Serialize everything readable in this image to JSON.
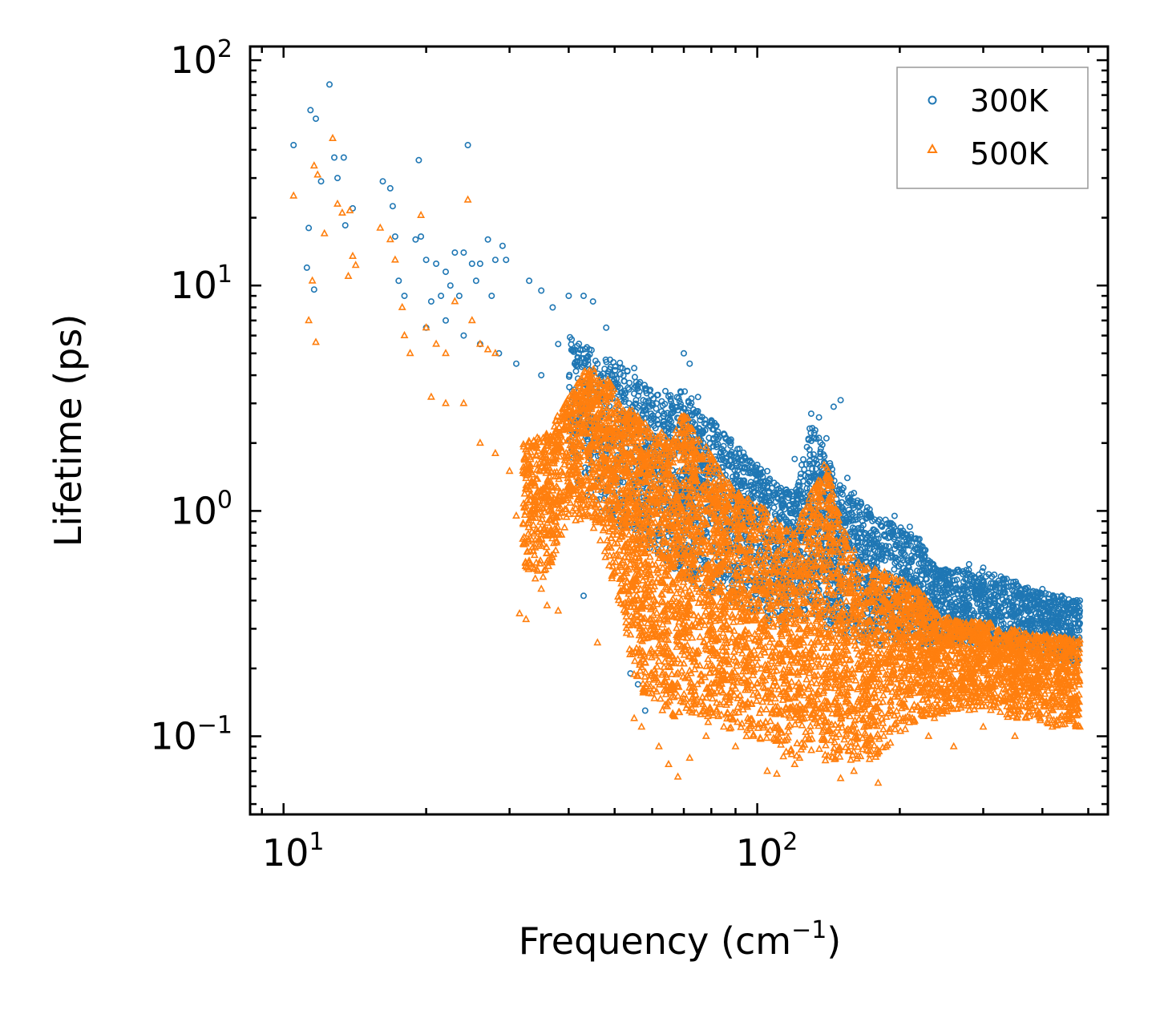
{
  "chart_data": {
    "type": "scatter",
    "title": "",
    "xlabel": "Frequency (cm",
    "xlabel_sup": "−1",
    "xlabel_end": ")",
    "ylabel": "Lifetime (ps)",
    "xscale": "log",
    "yscale": "log",
    "xlim": [
      8.5,
      550
    ],
    "ylim": [
      0.045,
      115
    ],
    "x_ticks": [
      {
        "value": 10,
        "base": "10",
        "exp": "1"
      },
      {
        "value": 100,
        "base": "10",
        "exp": "2"
      }
    ],
    "y_ticks": [
      {
        "value": 100,
        "base": "10",
        "exp": "2"
      },
      {
        "value": 10,
        "base": "10",
        "exp": "1"
      },
      {
        "value": 1,
        "base": "10",
        "exp": "0"
      },
      {
        "value": 0.1,
        "base": "10",
        "exp": "−1"
      }
    ],
    "legend_position": "top-right",
    "series": [
      {
        "name": "300K",
        "marker": "circle",
        "color": "#1f77b4",
        "points": [
          [
            10.5,
            42
          ],
          [
            11.4,
            60
          ],
          [
            11.7,
            55
          ],
          [
            12.0,
            29
          ],
          [
            12.5,
            78
          ],
          [
            12.8,
            37
          ],
          [
            13.0,
            30
          ],
          [
            13.4,
            37
          ],
          [
            14.0,
            22
          ],
          [
            11.3,
            18
          ],
          [
            11.2,
            12
          ],
          [
            11.6,
            9.6
          ],
          [
            13.5,
            18.5
          ],
          [
            16.2,
            29
          ],
          [
            16.8,
            27
          ],
          [
            17.0,
            22.5
          ],
          [
            17.2,
            16.5
          ],
          [
            19.0,
            16
          ],
          [
            19.3,
            36
          ],
          [
            19.5,
            16.5
          ],
          [
            20.0,
            13
          ],
          [
            21.0,
            12.5
          ],
          [
            22.0,
            11.5
          ],
          [
            23.0,
            14
          ],
          [
            24.0,
            14
          ],
          [
            24.5,
            42
          ],
          [
            25.0,
            12.5
          ],
          [
            26.0,
            12.5
          ],
          [
            27.0,
            16
          ],
          [
            28.0,
            13
          ],
          [
            29.0,
            15
          ],
          [
            29.5,
            13
          ],
          [
            17.5,
            10.5
          ],
          [
            18.0,
            9
          ],
          [
            20.5,
            8.5
          ],
          [
            21.5,
            9
          ],
          [
            22.5,
            10
          ],
          [
            23.5,
            9
          ],
          [
            25.5,
            10.5
          ],
          [
            27.5,
            9
          ],
          [
            33.0,
            10.5
          ],
          [
            35.0,
            9.5
          ],
          [
            37.0,
            8
          ],
          [
            40.0,
            9
          ],
          [
            43.0,
            9
          ],
          [
            45.0,
            8.5
          ],
          [
            48.0,
            6.5
          ],
          [
            20.0,
            6.5
          ],
          [
            22.0,
            7.0
          ],
          [
            24.0,
            6.0
          ],
          [
            26.0,
            5.5
          ],
          [
            28.5,
            5.0
          ],
          [
            31.0,
            4.5
          ],
          [
            35.0,
            4.0
          ],
          [
            38.0,
            5.5
          ],
          [
            42.0,
            5.0
          ],
          [
            46.0,
            4.5
          ],
          [
            50.0,
            4.0
          ],
          [
            55.0,
            4.3
          ],
          [
            58.0,
            3.5
          ],
          [
            60.0,
            3.0
          ],
          [
            64.0,
            3.4
          ],
          [
            68.0,
            2.8
          ],
          [
            70.0,
            5.0
          ],
          [
            72.0,
            4.5
          ],
          [
            75.0,
            3.2
          ],
          [
            80.0,
            2.5
          ],
          [
            85.0,
            2.2
          ],
          [
            90.0,
            1.8
          ],
          [
            100.0,
            1.6
          ],
          [
            105.0,
            1.5
          ],
          [
            110.0,
            1.3
          ],
          [
            115.0,
            1.2
          ],
          [
            120.0,
            1.7
          ],
          [
            130.0,
            2.7
          ],
          [
            135.0,
            2.6
          ],
          [
            140.0,
            2.1
          ],
          [
            145.0,
            2.9
          ],
          [
            150.0,
            3.1
          ],
          [
            155.0,
            1.4
          ],
          [
            160.0,
            1.2
          ],
          [
            170.0,
            1.0
          ],
          [
            180.0,
            0.9
          ],
          [
            195.0,
            0.95
          ],
          [
            210.0,
            0.85
          ],
          [
            220.0,
            0.75
          ],
          [
            250.0,
            0.55
          ],
          [
            280.0,
            0.58
          ],
          [
            300.0,
            0.56
          ],
          [
            330.0,
            0.5
          ],
          [
            360.0,
            0.45
          ],
          [
            400.0,
            0.45
          ],
          [
            440.0,
            0.42
          ],
          [
            480.0,
            0.4
          ],
          [
            43.0,
            0.42
          ],
          [
            56.0,
            0.17
          ],
          [
            58.0,
            0.13
          ],
          [
            54.0,
            0.19
          ]
        ]
      },
      {
        "name": "500K",
        "marker": "triangle",
        "color": "#ff7f0e",
        "points": [
          [
            10.5,
            25
          ],
          [
            11.3,
            7.0
          ],
          [
            11.5,
            10.5
          ],
          [
            11.7,
            5.6
          ],
          [
            11.6,
            34
          ],
          [
            11.8,
            31
          ],
          [
            12.2,
            17
          ],
          [
            12.7,
            45
          ],
          [
            13.0,
            23
          ],
          [
            13.3,
            21
          ],
          [
            13.7,
            11
          ],
          [
            14.0,
            13.5
          ],
          [
            14.2,
            12.3
          ],
          [
            13.8,
            21.5
          ],
          [
            16.0,
            18
          ],
          [
            16.8,
            16
          ],
          [
            17.2,
            13
          ],
          [
            17.8,
            8
          ],
          [
            18.0,
            6
          ],
          [
            18.5,
            5
          ],
          [
            19.5,
            20.5
          ],
          [
            20.0,
            6.5
          ],
          [
            21.0,
            5.5
          ],
          [
            22.0,
            5.0
          ],
          [
            23.0,
            8.5
          ],
          [
            24.5,
            24
          ],
          [
            25.0,
            7
          ],
          [
            26.0,
            5.5
          ],
          [
            27.0,
            5.2
          ],
          [
            28.0,
            5.0
          ],
          [
            20.5,
            3.2
          ],
          [
            22.0,
            3.0
          ],
          [
            24.0,
            3.0
          ],
          [
            26.0,
            2.0
          ],
          [
            28.0,
            1.8
          ],
          [
            30.0,
            1.5
          ],
          [
            31.0,
            0.95
          ],
          [
            32.0,
            0.75
          ],
          [
            33.0,
            0.6
          ],
          [
            34.0,
            0.5
          ],
          [
            35.0,
            0.45
          ],
          [
            36.0,
            0.38
          ],
          [
            38.0,
            0.36
          ],
          [
            31.5,
            0.35
          ],
          [
            32.5,
            0.33
          ],
          [
            46.0,
            0.26
          ],
          [
            55.0,
            0.12
          ],
          [
            57.0,
            0.11
          ],
          [
            62.0,
            0.09
          ],
          [
            65.0,
            0.075
          ],
          [
            68.0,
            0.066
          ],
          [
            72.0,
            0.08
          ],
          [
            78.0,
            0.1
          ],
          [
            85.0,
            0.11
          ],
          [
            90.0,
            0.09
          ],
          [
            105.0,
            0.07
          ],
          [
            110.0,
            0.068
          ],
          [
            120.0,
            0.075
          ],
          [
            150.0,
            0.065
          ],
          [
            160.0,
            0.07
          ],
          [
            180.0,
            0.062
          ],
          [
            200.0,
            0.12
          ],
          [
            230.0,
            0.1
          ],
          [
            260.0,
            0.09
          ],
          [
            300.0,
            0.11
          ],
          [
            350.0,
            0.1
          ],
          [
            420.0,
            0.11
          ],
          [
            480.0,
            0.11
          ]
        ],
        "bands": [
          [
            32,
            0.55,
            2.0
          ],
          [
            36,
            0.5,
            2.2
          ],
          [
            40,
            0.9,
            3.2
          ],
          [
            44,
            0.9,
            4.5
          ],
          [
            48,
            0.6,
            4.0
          ],
          [
            52,
            0.35,
            3.0
          ],
          [
            55,
            0.18,
            2.8
          ],
          [
            58,
            0.15,
            2.5
          ],
          [
            62,
            0.13,
            2.3
          ],
          [
            66,
            0.12,
            2.0
          ],
          [
            70,
            0.12,
            2.9
          ],
          [
            74,
            0.12,
            2.2
          ],
          [
            80,
            0.11,
            1.8
          ],
          [
            85,
            0.11,
            1.4
          ],
          [
            92,
            0.1,
            1.2
          ],
          [
            100,
            0.09,
            1.1
          ],
          [
            110,
            0.08,
            0.9
          ],
          [
            120,
            0.08,
            0.8
          ],
          [
            130,
            0.08,
            1.3
          ],
          [
            140,
            0.075,
            1.7
          ],
          [
            150,
            0.075,
            0.9
          ],
          [
            165,
            0.075,
            0.6
          ],
          [
            180,
            0.075,
            0.55
          ],
          [
            200,
            0.1,
            0.5
          ],
          [
            220,
            0.12,
            0.45
          ],
          [
            240,
            0.12,
            0.35
          ],
          [
            270,
            0.13,
            0.32
          ],
          [
            300,
            0.13,
            0.33
          ],
          [
            340,
            0.12,
            0.3
          ],
          [
            380,
            0.12,
            0.29
          ],
          [
            430,
            0.11,
            0.28
          ],
          [
            480,
            0.11,
            0.27
          ]
        ]
      }
    ],
    "blue_bands": [
      [
        40,
        1.5,
        6.0
      ],
      [
        46,
        1.0,
        5.0
      ],
      [
        52,
        0.8,
        4.5
      ],
      [
        58,
        0.7,
        3.8
      ],
      [
        64,
        0.6,
        3.2
      ],
      [
        70,
        0.5,
        3.5
      ],
      [
        76,
        0.45,
        2.8
      ],
      [
        84,
        0.4,
        2.3
      ],
      [
        92,
        0.38,
        1.9
      ],
      [
        100,
        0.35,
        1.6
      ],
      [
        110,
        0.3,
        1.3
      ],
      [
        120,
        0.3,
        1.2
      ],
      [
        130,
        0.35,
        2.5
      ],
      [
        140,
        0.3,
        1.8
      ],
      [
        150,
        0.28,
        1.3
      ],
      [
        165,
        0.26,
        1.1
      ],
      [
        180,
        0.25,
        0.95
      ],
      [
        200,
        0.25,
        0.85
      ],
      [
        220,
        0.25,
        0.75
      ],
      [
        240,
        0.25,
        0.55
      ],
      [
        270,
        0.25,
        0.55
      ],
      [
        300,
        0.25,
        0.55
      ],
      [
        340,
        0.24,
        0.5
      ],
      [
        380,
        0.23,
        0.45
      ],
      [
        430,
        0.22,
        0.42
      ],
      [
        480,
        0.2,
        0.4
      ]
    ]
  }
}
